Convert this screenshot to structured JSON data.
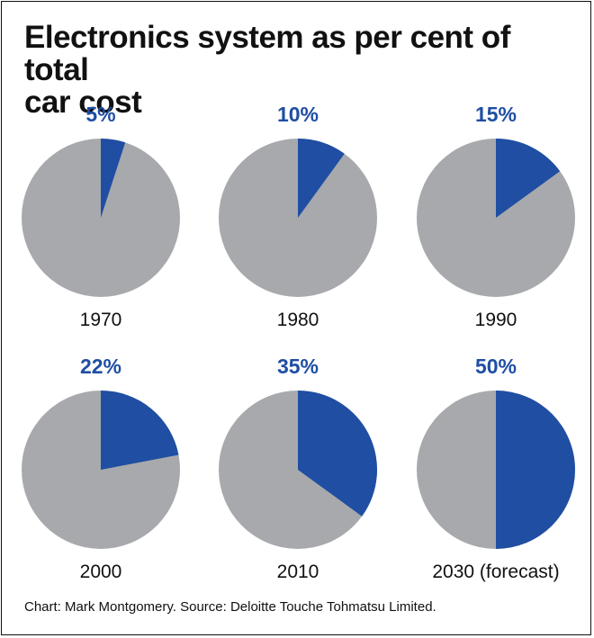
{
  "title_lines": [
    "Electronics system as per cent of total",
    "car cost"
  ],
  "source": "Chart: Mark Montgomery. Source: Deloitte Touche Tohmatsu Limited.",
  "colors": {
    "electronics": "#1f4ea3",
    "rest": "#a7a9ac"
  },
  "chart_data": {
    "type": "pie",
    "title": "Electronics system as per cent of total car cost",
    "unit": "%",
    "pies": [
      {
        "label": "1970",
        "value": 5,
        "value_label": "5%"
      },
      {
        "label": "1980",
        "value": 10,
        "value_label": "10%"
      },
      {
        "label": "1990",
        "value": 15,
        "value_label": "15%"
      },
      {
        "label": "2000",
        "value": 22,
        "value_label": "22%"
      },
      {
        "label": "2010",
        "value": 35,
        "value_label": "35%"
      },
      {
        "label": "2030 (forecast)",
        "value": 50,
        "value_label": "50%"
      }
    ]
  }
}
